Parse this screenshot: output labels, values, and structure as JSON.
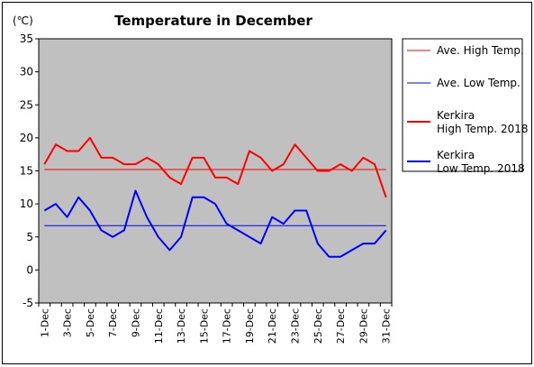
{
  "chart_data": {
    "type": "line",
    "title": "Temperature in December",
    "unit_label": "(℃)",
    "ylim": [
      -5,
      35
    ],
    "y_ticks": [
      35,
      30,
      25,
      20,
      15,
      10,
      5,
      0,
      -5
    ],
    "x": [
      1,
      2,
      3,
      4,
      5,
      6,
      7,
      8,
      9,
      10,
      11,
      12,
      13,
      14,
      15,
      16,
      17,
      18,
      19,
      20,
      21,
      22,
      23,
      24,
      25,
      26,
      27,
      28,
      29,
      30,
      31
    ],
    "x_tick_labels": [
      "1-Dec",
      "3-Dec",
      "5-Dec",
      "7-Dec",
      "9-Dec",
      "11-Dec",
      "13-Dec",
      "15-Dec",
      "17-Dec",
      "19-Dec",
      "21-Dec",
      "23-Dec",
      "25-Dec",
      "27-Dec",
      "29-Dec",
      "31-Dec"
    ],
    "grid": false,
    "plot_background": "#c0c0c0",
    "legend_position": "right",
    "series": [
      {
        "name": "Ave. High Temp.",
        "color": "#ff0000",
        "width": 1,
        "values": [
          15.2,
          15.2,
          15.2,
          15.2,
          15.2,
          15.2,
          15.2,
          15.2,
          15.2,
          15.2,
          15.2,
          15.2,
          15.2,
          15.2,
          15.2,
          15.2,
          15.2,
          15.2,
          15.2,
          15.2,
          15.2,
          15.2,
          15.2,
          15.2,
          15.2,
          15.2,
          15.2,
          15.2,
          15.2,
          15.2,
          15.2
        ]
      },
      {
        "name": "Ave. Low Temp.",
        "color": "#0000ff",
        "width": 1,
        "values": [
          6.7,
          6.7,
          6.7,
          6.7,
          6.7,
          6.7,
          6.7,
          6.7,
          6.7,
          6.7,
          6.7,
          6.7,
          6.7,
          6.7,
          6.7,
          6.7,
          6.7,
          6.7,
          6.7,
          6.7,
          6.7,
          6.7,
          6.7,
          6.7,
          6.7,
          6.7,
          6.7,
          6.7,
          6.7,
          6.7,
          6.7
        ]
      },
      {
        "name": "Kerkira High Temp. 2018",
        "legend_lines": [
          "Kerkira",
          "High Temp. 2018"
        ],
        "color": "#ff0000",
        "width": 2,
        "values": [
          16,
          19,
          18,
          18,
          20,
          17,
          17,
          16,
          16,
          17,
          16,
          14,
          13,
          17,
          17,
          14,
          14,
          13,
          18,
          17,
          15,
          16,
          19,
          17,
          15,
          15,
          16,
          15,
          17,
          16,
          11
        ]
      },
      {
        "name": "Kerkira Low Temp. 2018",
        "legend_lines": [
          "Kerkira",
          "Low Temp. 2018"
        ],
        "color": "#0000ff",
        "width": 2,
        "values": [
          9,
          10,
          8,
          11,
          9,
          6,
          5,
          6,
          12,
          8,
          5,
          3,
          5,
          11,
          11,
          10,
          7,
          6,
          5,
          4,
          8,
          7,
          9,
          9,
          4,
          2,
          2,
          3,
          4,
          4,
          6
        ]
      }
    ]
  }
}
